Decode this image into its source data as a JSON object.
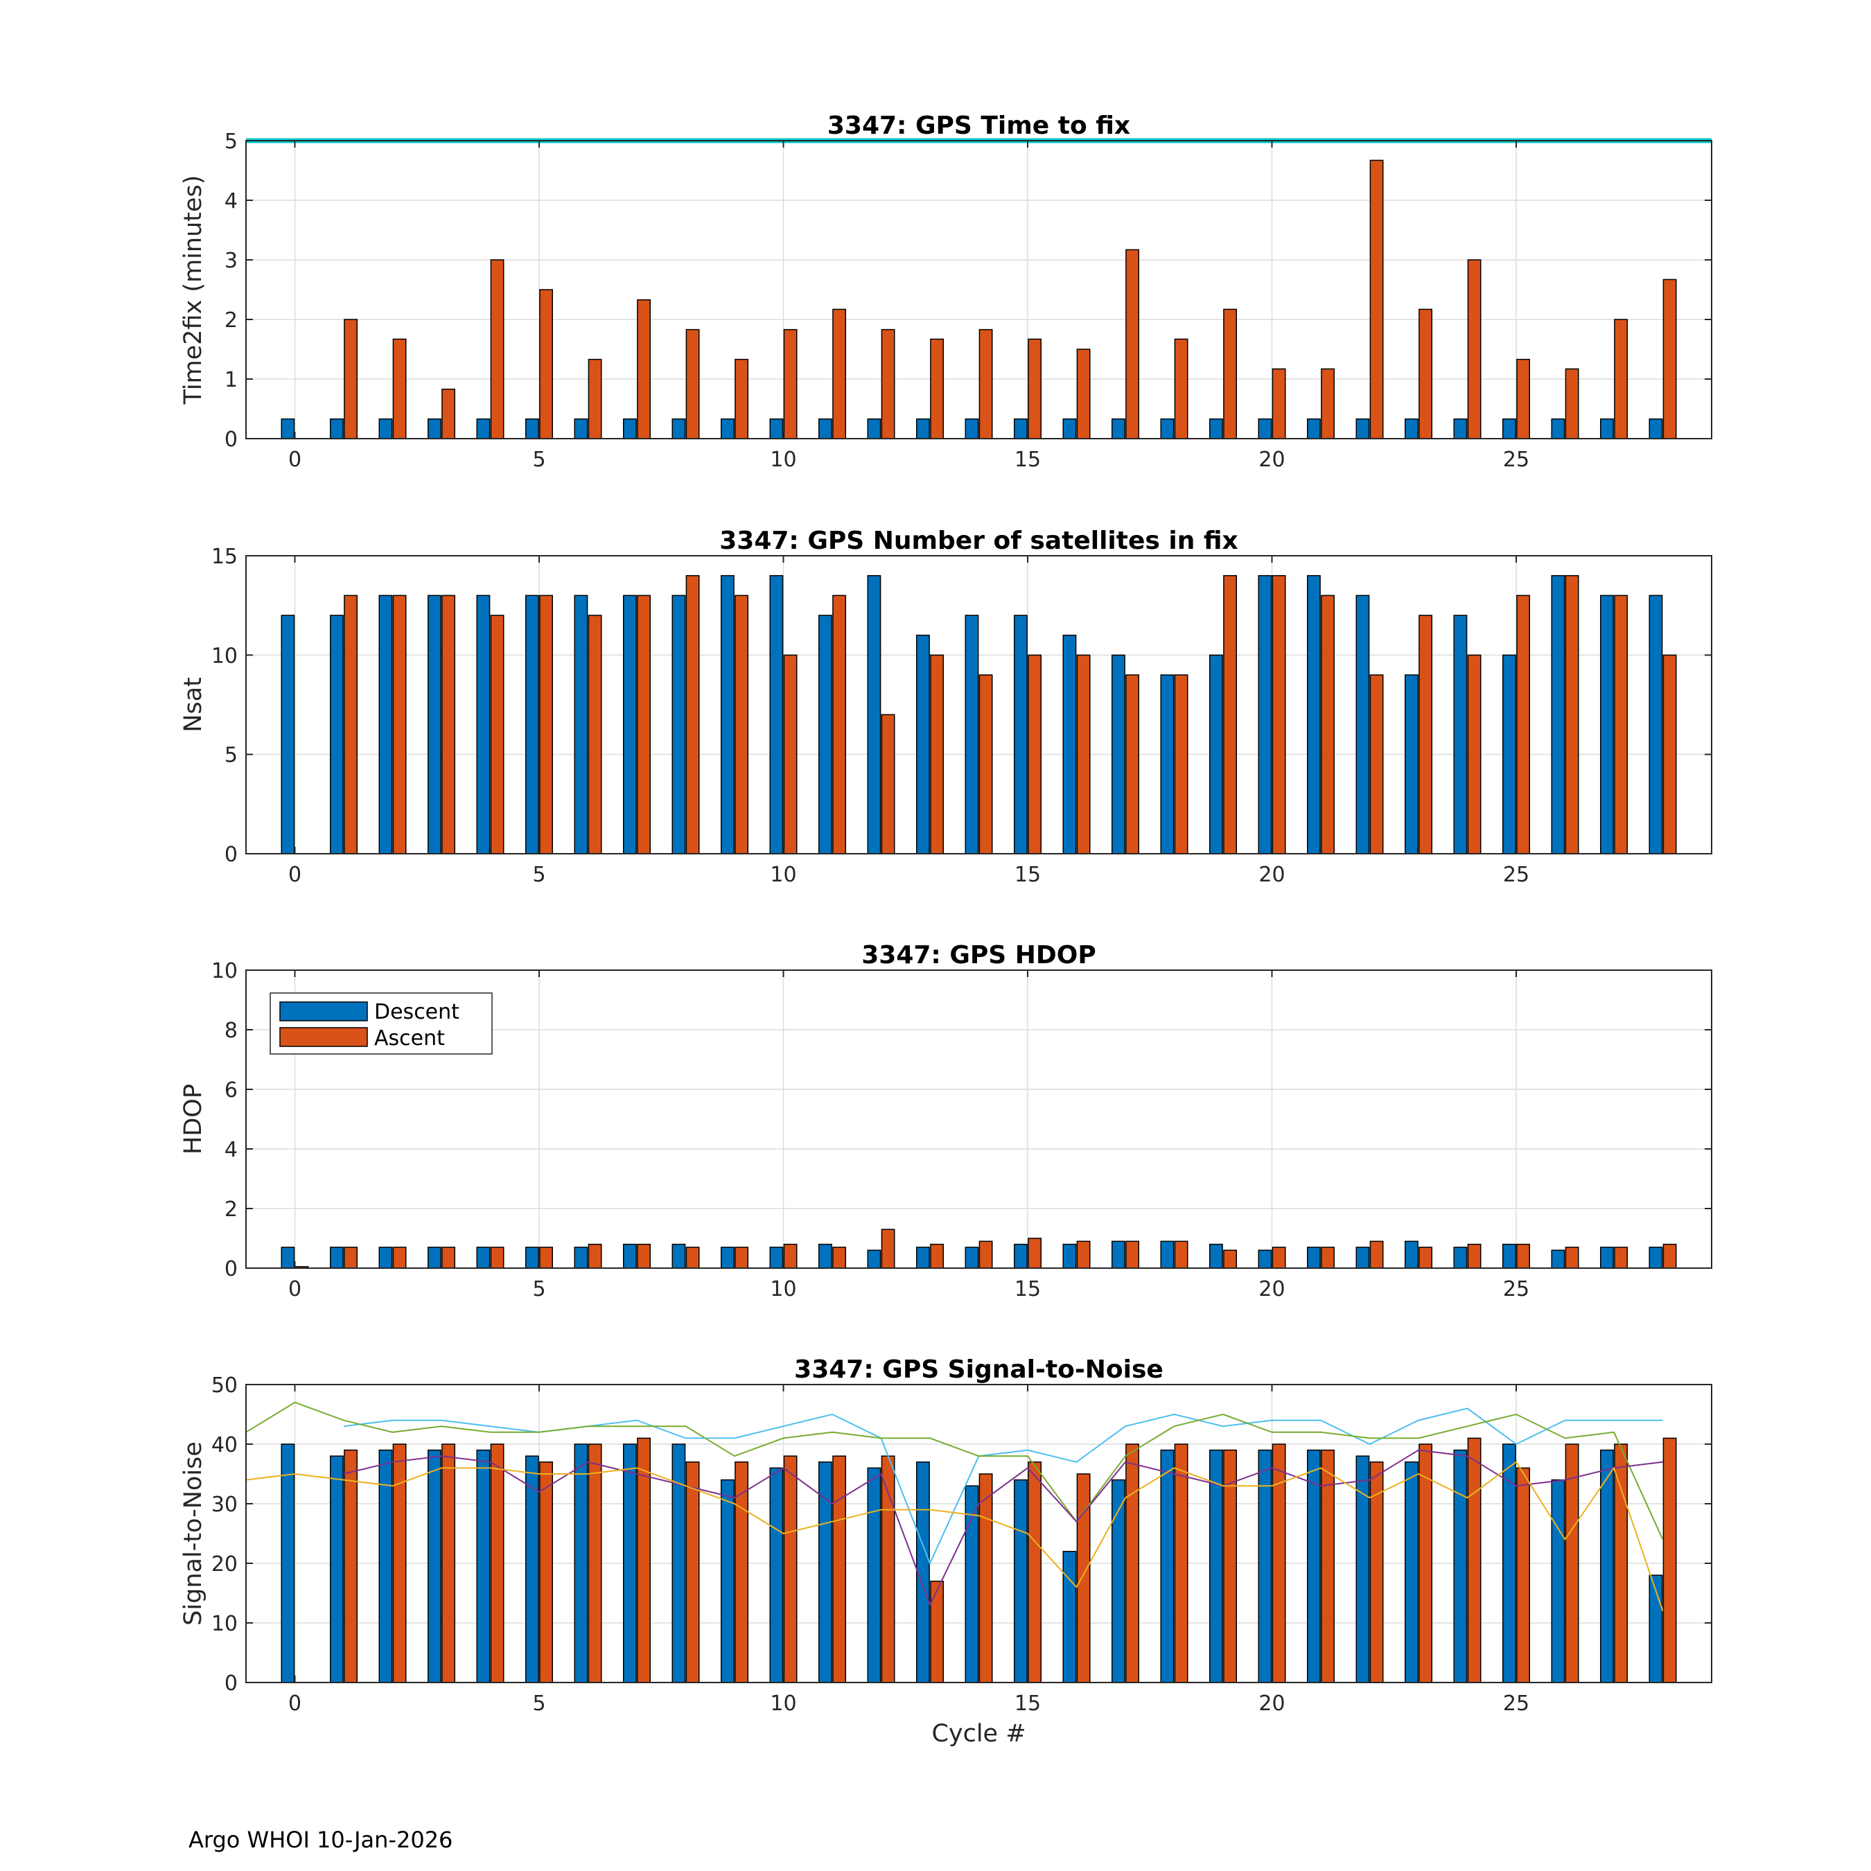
{
  "footer": "Argo WHOI 10-Jan-2026",
  "colors": {
    "descent": "#0072BD",
    "ascent": "#D95319",
    "limit_line": "#00C8C8",
    "snr_lines": [
      "#4DBEEE",
      "#77AC30",
      "#7E2F8E",
      "#EDB120"
    ]
  },
  "legend": {
    "descent": "Descent",
    "ascent": "Ascent"
  },
  "chart_data": [
    {
      "type": "bar",
      "title": "3347: GPS Time to fix",
      "ylabel": "Time2fix (minutes)",
      "xlabel": "",
      "xlim": [
        -1,
        29
      ],
      "ylim": [
        0,
        5
      ],
      "xticks": [
        0,
        5,
        10,
        15,
        20,
        25
      ],
      "yticks": [
        0,
        1,
        2,
        3,
        4,
        5
      ],
      "limit_line": 5,
      "grid": true,
      "series": [
        {
          "name": "Descent",
          "values": [
            0.33,
            0.33,
            0.33,
            0.33,
            0.33,
            0.33,
            0.33,
            0.33,
            0.33,
            0.33,
            0.33,
            0.33,
            0.33,
            0.33,
            0.33,
            0.33,
            0.33,
            0.33,
            0.33,
            0.33,
            0.33,
            0.33,
            0.33,
            0.33,
            0.33,
            0.33,
            0.33,
            0.33,
            0.33
          ]
        },
        {
          "name": "Ascent",
          "values": [
            null,
            2.0,
            1.67,
            0.83,
            3.0,
            2.5,
            1.33,
            2.33,
            1.83,
            1.33,
            1.83,
            2.17,
            1.83,
            1.67,
            1.83,
            1.67,
            1.5,
            3.17,
            1.67,
            2.17,
            1.17,
            1.17,
            4.67,
            2.17,
            3.0,
            1.33,
            1.17,
            2.0,
            2.67
          ]
        }
      ]
    },
    {
      "type": "bar",
      "title": "3347: GPS Number of satellites in fix",
      "ylabel": "Nsat",
      "xlabel": "",
      "xlim": [
        -1,
        29
      ],
      "ylim": [
        0,
        15
      ],
      "xticks": [
        0,
        5,
        10,
        15,
        20,
        25
      ],
      "yticks": [
        0,
        5,
        10,
        15
      ],
      "grid": true,
      "series": [
        {
          "name": "Descent",
          "values": [
            12,
            12,
            13,
            13,
            13,
            13,
            13,
            13,
            13,
            14,
            14,
            12,
            14,
            11,
            12,
            12,
            11,
            10,
            9,
            10,
            14,
            14,
            13,
            9,
            12,
            10,
            14,
            13,
            13
          ]
        },
        {
          "name": "Ascent",
          "values": [
            null,
            13,
            13,
            13,
            12,
            13,
            12,
            13,
            14,
            13,
            10,
            13,
            7,
            10,
            9,
            10,
            10,
            9,
            9,
            14,
            14,
            13,
            9,
            12,
            10,
            13,
            14,
            13,
            10
          ]
        }
      ]
    },
    {
      "type": "bar",
      "title": "3347: GPS HDOP",
      "ylabel": "HDOP",
      "xlabel": "",
      "xlim": [
        -1,
        29
      ],
      "ylim": [
        0,
        10
      ],
      "xticks": [
        0,
        5,
        10,
        15,
        20,
        25
      ],
      "yticks": [
        0,
        2,
        4,
        6,
        8,
        10
      ],
      "legend": "top-left",
      "grid": true,
      "series": [
        {
          "name": "Descent",
          "values": [
            0.7,
            0.7,
            0.7,
            0.7,
            0.7,
            0.7,
            0.7,
            0.8,
            0.8,
            0.7,
            0.7,
            0.8,
            0.6,
            0.7,
            0.7,
            0.8,
            0.8,
            0.9,
            0.9,
            0.8,
            0.6,
            0.7,
            0.7,
            0.9,
            0.7,
            0.8,
            0.6,
            0.7,
            0.7
          ]
        },
        {
          "name": "Ascent",
          "values": [
            0.05,
            0.7,
            0.7,
            0.7,
            0.7,
            0.7,
            0.8,
            0.8,
            0.7,
            0.7,
            0.8,
            0.7,
            1.3,
            0.8,
            0.9,
            1.0,
            0.9,
            0.9,
            0.9,
            0.6,
            0.7,
            0.7,
            0.9,
            0.7,
            0.8,
            0.8,
            0.7,
            0.7,
            0.8
          ]
        }
      ]
    },
    {
      "type": "bar",
      "title": "3347: GPS Signal-to-Noise",
      "ylabel": "Signal-to-Noise",
      "xlabel": "Cycle #",
      "xlim": [
        -1,
        29
      ],
      "ylim": [
        0,
        50
      ],
      "xticks": [
        0,
        5,
        10,
        15,
        20,
        25
      ],
      "yticks": [
        0,
        10,
        20,
        30,
        40,
        50
      ],
      "grid": true,
      "series": [
        {
          "name": "Descent",
          "values": [
            40,
            38,
            39,
            39,
            39,
            38,
            40,
            40,
            40,
            34,
            36,
            37,
            36,
            37,
            33,
            34,
            22,
            34,
            39,
            39,
            39,
            39,
            38,
            37,
            39,
            40,
            34,
            39,
            18
          ]
        },
        {
          "name": "Ascent",
          "values": [
            null,
            39,
            40,
            40,
            40,
            37,
            40,
            41,
            37,
            37,
            38,
            38,
            38,
            17,
            35,
            37,
            35,
            40,
            40,
            39,
            40,
            39,
            37,
            40,
            41,
            36,
            40,
            40,
            41
          ]
        }
      ],
      "lines": [
        {
          "name": "SNR line 1",
          "x": [
            1,
            2,
            3,
            4,
            5,
            6,
            7,
            8,
            9,
            10,
            11,
            12,
            13,
            14,
            15,
            16,
            17,
            18,
            19,
            20,
            21,
            22,
            23,
            24,
            25,
            26,
            27,
            28
          ],
          "values": [
            43,
            44,
            44,
            43,
            42,
            43,
            44,
            41,
            41,
            43,
            45,
            41,
            20,
            38,
            39,
            37,
            43,
            45,
            43,
            44,
            44,
            40,
            44,
            46,
            40,
            44,
            44,
            44
          ]
        },
        {
          "name": "SNR line 2",
          "x": [
            -1,
            0,
            1,
            2,
            3,
            4,
            5,
            6,
            7,
            8,
            9,
            10,
            11,
            12,
            13,
            14,
            15,
            16,
            17,
            18,
            19,
            20,
            21,
            22,
            23,
            24,
            25,
            26,
            27,
            28
          ],
          "values": [
            42,
            47,
            44,
            42,
            43,
            42,
            42,
            43,
            43,
            43,
            38,
            41,
            42,
            41,
            41,
            38,
            38,
            27,
            38,
            43,
            45,
            42,
            42,
            41,
            41,
            43,
            45,
            41,
            42,
            24
          ]
        },
        {
          "name": "SNR line 3",
          "x": [
            1,
            2,
            3,
            4,
            5,
            6,
            7,
            8,
            9,
            10,
            11,
            12,
            13,
            14,
            15,
            16,
            17,
            18,
            19,
            20,
            21,
            22,
            23,
            24,
            25,
            26,
            27,
            28
          ],
          "values": [
            35,
            37,
            38,
            37,
            32,
            37,
            35,
            33,
            31,
            36,
            30,
            35,
            13,
            30,
            36,
            27,
            37,
            35,
            33,
            36,
            33,
            34,
            39,
            38,
            33,
            34,
            36,
            37
          ]
        },
        {
          "name": "SNR line 4",
          "x": [
            -1,
            0,
            1,
            2,
            3,
            4,
            5,
            6,
            7,
            8,
            9,
            10,
            11,
            12,
            13,
            14,
            15,
            16,
            17,
            18,
            19,
            20,
            21,
            22,
            23,
            24,
            25,
            26,
            27,
            28
          ],
          "values": [
            34,
            35,
            34,
            33,
            36,
            36,
            35,
            35,
            36,
            33,
            30,
            25,
            27,
            29,
            29,
            28,
            25,
            16,
            31,
            36,
            33,
            33,
            36,
            31,
            35,
            31,
            37,
            24,
            36,
            12
          ]
        }
      ]
    }
  ]
}
